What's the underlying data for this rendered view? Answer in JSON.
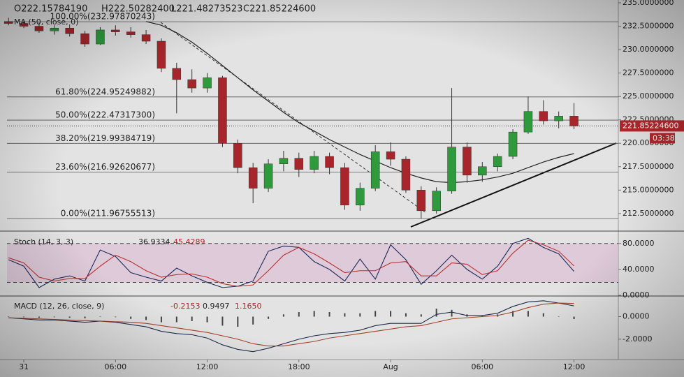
{
  "chart_data": [
    {
      "type": "candlestick",
      "ohlc_label": [
        "O222.15784190",
        "H222.50282400",
        "L221.48273523",
        "C221.85224600"
      ],
      "ma_label": "MA (50, close, 0)",
      "x": [
        -1,
        0,
        1,
        2,
        3,
        4,
        5,
        6,
        7,
        8,
        9,
        10,
        11,
        12,
        13,
        14,
        15,
        16,
        17,
        18,
        19,
        20,
        21,
        22,
        23,
        24,
        25,
        26,
        27,
        28,
        29,
        30,
        31,
        32,
        33,
        34,
        35,
        36
      ],
      "open": [
        233.0,
        232.8,
        232.5,
        232.0,
        232.3,
        231.7,
        230.6,
        232.1,
        231.9,
        231.6,
        230.9,
        228.0,
        226.8,
        225.9,
        227.0,
        220.0,
        217.4,
        215.2,
        217.8,
        218.4,
        217.2,
        218.6,
        217.4,
        213.4,
        215.2,
        219.1,
        218.3,
        215.0,
        212.8,
        214.9,
        219.6,
        216.6,
        217.5,
        218.6,
        221.2,
        223.4,
        222.4,
        222.9
      ],
      "high": [
        233.4,
        233.2,
        232.9,
        232.6,
        232.7,
        232.0,
        232.4,
        232.6,
        232.4,
        232.1,
        231.2,
        228.6,
        227.9,
        227.5,
        227.2,
        220.4,
        217.9,
        218.3,
        219.2,
        219.0,
        219.2,
        219.0,
        217.9,
        215.8,
        219.8,
        220.1,
        218.6,
        215.4,
        215.3,
        225.9,
        220.1,
        218.0,
        218.9,
        221.5,
        225.0,
        224.6,
        223.4,
        224.3
      ],
      "low": [
        232.6,
        232.3,
        231.8,
        231.6,
        231.4,
        230.3,
        230.5,
        231.5,
        231.3,
        230.6,
        227.6,
        223.2,
        225.4,
        225.4,
        219.6,
        216.8,
        213.6,
        214.8,
        217.0,
        216.4,
        216.8,
        216.7,
        212.9,
        212.8,
        214.9,
        217.6,
        214.7,
        211.97,
        212.5,
        214.6,
        215.8,
        215.9,
        217.0,
        218.3,
        221.0,
        222.0,
        221.6,
        221.5
      ],
      "close": [
        232.8,
        232.5,
        232.0,
        232.3,
        231.7,
        230.6,
        232.1,
        231.9,
        231.6,
        230.9,
        228.0,
        226.8,
        225.9,
        227.0,
        220.0,
        217.4,
        215.2,
        217.8,
        218.4,
        217.2,
        218.6,
        217.4,
        213.4,
        215.2,
        219.1,
        218.3,
        215.0,
        212.8,
        214.9,
        219.6,
        216.6,
        217.5,
        218.6,
        221.2,
        223.4,
        222.4,
        222.9,
        221.85
      ],
      "up_color": "#2f9a3c",
      "down_color": "#a8262b",
      "ma": {
        "color": "#222222",
        "values": [
          null,
          null,
          null,
          null,
          null,
          null,
          null,
          null,
          null,
          233.0,
          232.6,
          231.8,
          230.8,
          229.6,
          228.3,
          227.0,
          225.7,
          224.5,
          223.3,
          222.2,
          221.3,
          220.4,
          219.6,
          218.8,
          218.1,
          217.4,
          216.8,
          216.3,
          215.9,
          215.8,
          215.9,
          216.1,
          216.4,
          216.8,
          217.4,
          218.0,
          218.5,
          218.9
        ]
      },
      "fib_levels": [
        {
          "value": 232.97870243,
          "label": "100.00%(232.97870243)"
        },
        {
          "value": 224.95249882,
          "label": "61.80%(224.95249882)"
        },
        {
          "value": 222.473173,
          "label": "50.00%(222.47317300)"
        },
        {
          "value": 219.99384719,
          "label": "38.20%(219.99384719)"
        },
        {
          "value": 216.92620677,
          "label": "23.60%(216.92620677)"
        },
        {
          "value": 211.96755513,
          "label": "0.00%(211.96755513)"
        }
      ],
      "last_price": {
        "value": 221.852246,
        "label": "221.85224600"
      },
      "countdown": "03:38",
      "xlim": [
        -1.1,
        38.9
      ],
      "ylim": [
        210.7,
        235.3
      ],
      "yticks": [
        {
          "value": 235,
          "label": "235.0000000"
        },
        {
          "value": 232.5,
          "label": "232.5000000"
        },
        {
          "value": 230,
          "label": "230.0000000"
        },
        {
          "value": 227.5,
          "label": "227.5000000"
        },
        {
          "value": 225,
          "label": "225.0000000"
        },
        {
          "value": 222.5,
          "label": "222.5000000"
        },
        {
          "value": 220,
          "label": "220.0000000"
        },
        {
          "value": 217.5,
          "label": "217.5000000"
        },
        {
          "value": 215,
          "label": "215.0000000"
        },
        {
          "value": 212.5,
          "label": "212.5000000"
        }
      ]
    },
    {
      "type": "line",
      "title": "Stoch (14, 3, 3)",
      "last_labels": [
        "36.9334",
        "45.4289"
      ],
      "series": [
        {
          "color": "#1d2a5a",
          "values": [
            55,
            45,
            12,
            25,
            30,
            22,
            70,
            60,
            35,
            28,
            22,
            42,
            30,
            20,
            12,
            14,
            22,
            68,
            76,
            74,
            52,
            40,
            22,
            56,
            25,
            78,
            55,
            17,
            38,
            62,
            40,
            25,
            45,
            80,
            88,
            74,
            64,
            36.93
          ]
        },
        {
          "color": "#b8322e",
          "values": [
            58,
            50,
            28,
            22,
            26,
            26,
            45,
            62,
            52,
            38,
            28,
            32,
            33,
            28,
            18,
            14,
            16,
            38,
            62,
            74,
            64,
            50,
            35,
            38,
            38,
            50,
            52,
            30,
            30,
            50,
            48,
            32,
            38,
            65,
            85,
            78,
            68,
            45.43
          ]
        }
      ],
      "band": [
        20,
        80
      ],
      "band_color": "#dcc3d6",
      "ylim": [
        0,
        97
      ],
      "yticks": [
        {
          "value": 80,
          "label": "80.0000"
        },
        {
          "value": 40,
          "label": "40.0000"
        },
        {
          "value": 0,
          "label": "0.0000"
        }
      ]
    },
    {
      "type": "macd",
      "title": "MACD (12, 26, close, 9)",
      "last_labels": [
        "-0.2153",
        "0.9497",
        "1.1650"
      ],
      "histogram": {
        "color": "#444444",
        "values": [
          0,
          -0.05,
          -0.1,
          -0.05,
          -0.1,
          -0.15,
          0,
          -0.05,
          -0.2,
          -0.3,
          -0.5,
          -0.5,
          -0.4,
          -0.5,
          -0.8,
          -0.9,
          -0.7,
          -0.2,
          0.2,
          0.4,
          0.5,
          0.4,
          0.3,
          0.3,
          0.5,
          0.5,
          0.3,
          0.2,
          0.7,
          0.6,
          0.2,
          0.1,
          0.2,
          0.5,
          0.5,
          0.3,
          0,
          -0.2153
        ]
      },
      "series": [
        {
          "color": "#1f2a4a",
          "values": [
            -0.1,
            -0.2,
            -0.3,
            -0.3,
            -0.4,
            -0.5,
            -0.4,
            -0.5,
            -0.7,
            -0.9,
            -1.3,
            -1.5,
            -1.6,
            -1.9,
            -2.5,
            -2.9,
            -3.1,
            -2.8,
            -2.4,
            -2.0,
            -1.7,
            -1.5,
            -1.4,
            -1.2,
            -0.8,
            -0.6,
            -0.6,
            -0.6,
            0.2,
            0.4,
            0.1,
            0.1,
            0.3,
            0.9,
            1.3,
            1.4,
            1.2,
            0.9497
          ]
        },
        {
          "color": "#a0442a",
          "values": [
            -0.1,
            -0.15,
            -0.2,
            -0.25,
            -0.3,
            -0.35,
            -0.4,
            -0.45,
            -0.5,
            -0.6,
            -0.8,
            -1.0,
            -1.2,
            -1.4,
            -1.7,
            -2.0,
            -2.4,
            -2.6,
            -2.6,
            -2.4,
            -2.2,
            -1.9,
            -1.7,
            -1.5,
            -1.3,
            -1.1,
            -0.9,
            -0.8,
            -0.5,
            -0.2,
            -0.1,
            0.0,
            0.1,
            0.4,
            0.8,
            1.1,
            1.2,
            1.165
          ]
        }
      ],
      "ylim": [
        -3.8,
        1.7
      ],
      "yticks": [
        {
          "value": 0,
          "label": "0.0000"
        },
        {
          "value": -2,
          "label": "-2.0000"
        }
      ],
      "xticks": [
        {
          "value": 0,
          "label": "31"
        },
        {
          "value": 6,
          "label": "06:00"
        },
        {
          "value": 12,
          "label": "12:00"
        },
        {
          "value": 18,
          "label": "18:00"
        },
        {
          "value": 24,
          "label": "Aug"
        },
        {
          "value": 30,
          "label": "06:00"
        },
        {
          "value": 36,
          "label": "12:00"
        }
      ]
    }
  ]
}
